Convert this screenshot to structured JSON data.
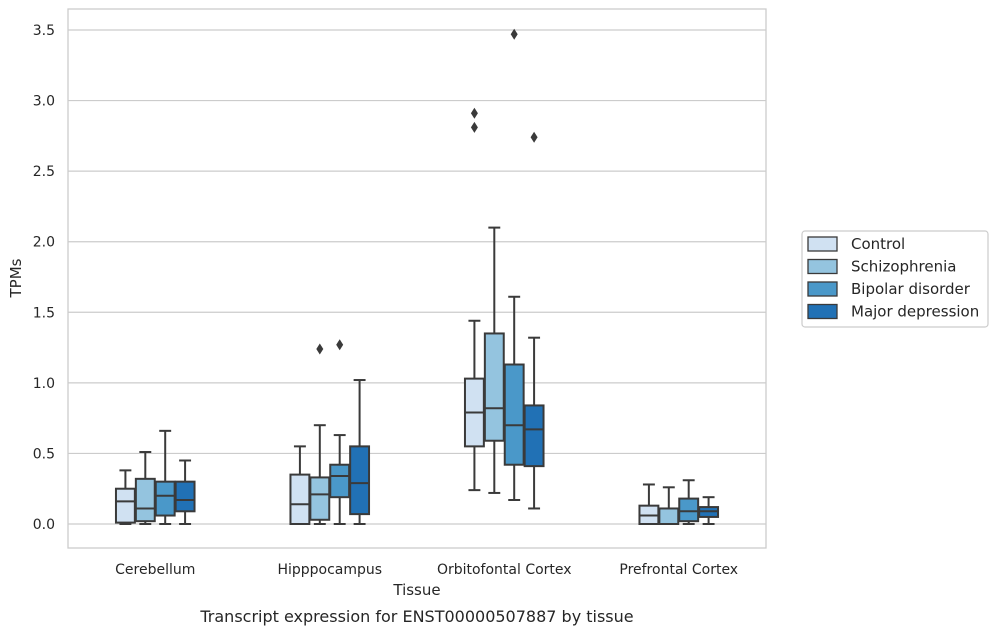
{
  "chart_data": {
    "type": "box",
    "title": "",
    "caption": "Transcript expression for ENST00000507887 by tissue",
    "xlabel": "Tissue",
    "ylabel": "TPMs",
    "ylim": [
      -0.17,
      3.65
    ],
    "yticks": [
      0.0,
      0.5,
      1.0,
      1.5,
      2.0,
      2.5,
      3.0,
      3.5
    ],
    "ytick_labels": [
      "0.0",
      "0.5",
      "1.0",
      "1.5",
      "2.0",
      "2.5",
      "3.0",
      "3.5"
    ],
    "grid": "horizontal",
    "legend_position": "right",
    "categories": [
      "Cerebellum",
      "Hipppocampus",
      "Orbitofontal Cortex",
      "Prefrontal Cortex"
    ],
    "series": [
      {
        "name": "Control",
        "color": "#d0e1f2",
        "boxes": [
          {
            "whisker_low": 0.0,
            "q1": 0.01,
            "median": 0.16,
            "q3": 0.25,
            "whisker_high": 0.38,
            "outliers": []
          },
          {
            "whisker_low": 0.0,
            "q1": 0.0,
            "median": 0.14,
            "q3": 0.35,
            "whisker_high": 0.55,
            "outliers": []
          },
          {
            "whisker_low": 0.24,
            "q1": 0.55,
            "median": 0.79,
            "q3": 1.03,
            "whisker_high": 1.44,
            "outliers": [
              2.81,
              2.91
            ]
          },
          {
            "whisker_low": 0.0,
            "q1": 0.0,
            "median": 0.06,
            "q3": 0.13,
            "whisker_high": 0.28,
            "outliers": []
          }
        ]
      },
      {
        "name": "Schizophrenia",
        "color": "#94c4df",
        "boxes": [
          {
            "whisker_low": 0.0,
            "q1": 0.02,
            "median": 0.11,
            "q3": 0.32,
            "whisker_high": 0.51,
            "outliers": []
          },
          {
            "whisker_low": 0.0,
            "q1": 0.03,
            "median": 0.21,
            "q3": 0.33,
            "whisker_high": 0.7,
            "outliers": [
              1.24
            ]
          },
          {
            "whisker_low": 0.22,
            "q1": 0.59,
            "median": 0.82,
            "q3": 1.35,
            "whisker_high": 2.1,
            "outliers": []
          },
          {
            "whisker_low": 0.0,
            "q1": 0.0,
            "median": 0.0,
            "q3": 0.11,
            "whisker_high": 0.26,
            "outliers": []
          }
        ]
      },
      {
        "name": "Bipolar disorder",
        "color": "#4a98c9",
        "boxes": [
          {
            "whisker_low": 0.0,
            "q1": 0.06,
            "median": 0.2,
            "q3": 0.3,
            "whisker_high": 0.66,
            "outliers": []
          },
          {
            "whisker_low": 0.0,
            "q1": 0.19,
            "median": 0.34,
            "q3": 0.42,
            "whisker_high": 0.63,
            "outliers": [
              1.27
            ]
          },
          {
            "whisker_low": 0.17,
            "q1": 0.42,
            "median": 0.7,
            "q3": 1.13,
            "whisker_high": 1.61,
            "outliers": [
              3.47
            ]
          },
          {
            "whisker_low": 0.0,
            "q1": 0.02,
            "median": 0.09,
            "q3": 0.18,
            "whisker_high": 0.31,
            "outliers": []
          }
        ]
      },
      {
        "name": "Major depression",
        "color": "#2171b5",
        "boxes": [
          {
            "whisker_low": 0.0,
            "q1": 0.09,
            "median": 0.17,
            "q3": 0.3,
            "whisker_high": 0.45,
            "outliers": []
          },
          {
            "whisker_low": 0.0,
            "q1": 0.07,
            "median": 0.29,
            "q3": 0.55,
            "whisker_high": 1.02,
            "outliers": []
          },
          {
            "whisker_low": 0.11,
            "q1": 0.41,
            "median": 0.67,
            "q3": 0.84,
            "whisker_high": 1.32,
            "outliers": [
              2.74
            ]
          },
          {
            "whisker_low": 0.0,
            "q1": 0.05,
            "median": 0.09,
            "q3": 0.12,
            "whisker_high": 0.19,
            "outliers": []
          }
        ]
      }
    ]
  }
}
